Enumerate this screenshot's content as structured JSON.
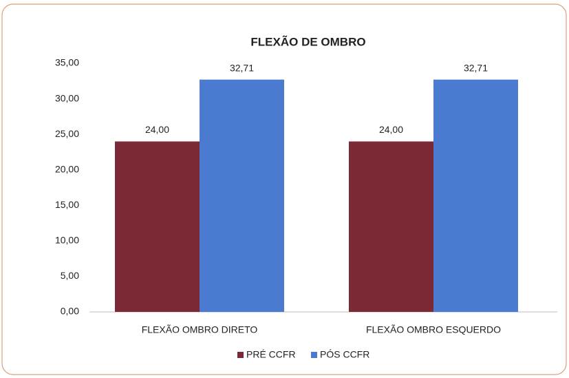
{
  "chart_data": {
    "type": "bar",
    "title": "FLEXÃO DE OMBRO",
    "categories": [
      "FLEXÃO OMBRO DIRETO",
      "FLEXÃO OMBRO ESQUERDO"
    ],
    "series": [
      {
        "name": "PRÉ CCFR",
        "color": "#7b2a35",
        "values": [
          24,
          24
        ],
        "value_labels": [
          "24,00",
          "24,00"
        ]
      },
      {
        "name": "PÓS CCFR",
        "color": "#4a7bd0",
        "values": [
          32.71,
          32.71
        ],
        "value_labels": [
          "32,71",
          "32,71"
        ]
      }
    ],
    "ylim": [
      0,
      35
    ],
    "yticks": [
      {
        "value": 0,
        "label": "0,00"
      },
      {
        "value": 5,
        "label": "5,00"
      },
      {
        "value": 10,
        "label": "10,00"
      },
      {
        "value": 15,
        "label": "15,00"
      },
      {
        "value": 20,
        "label": "20,00"
      },
      {
        "value": 25,
        "label": "25,00"
      },
      {
        "value": 30,
        "label": "30,00"
      },
      {
        "value": 35,
        "label": "35,00"
      }
    ],
    "grid": false,
    "legend": "bottom"
  }
}
